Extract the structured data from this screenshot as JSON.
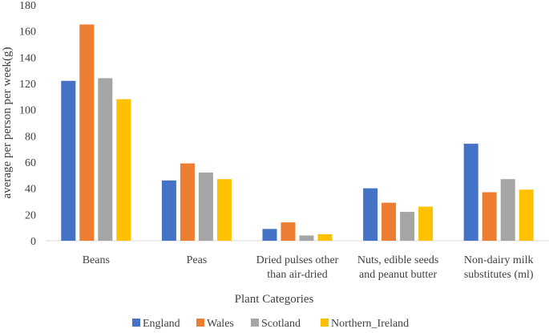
{
  "chart_data": {
    "type": "bar",
    "title": "",
    "xlabel": "Plant Categories",
    "ylabel": "average per person per week(g)",
    "ylim": [
      0,
      180
    ],
    "yticks": [
      0,
      20,
      40,
      60,
      80,
      100,
      120,
      140,
      160,
      180
    ],
    "grid": false,
    "legend_position": "bottom",
    "categories": [
      [
        "Beans"
      ],
      [
        "Peas"
      ],
      [
        "Dried pulses other",
        "than air-dried"
      ],
      [
        "Nuts, edible seeds",
        "and peanut butter"
      ],
      [
        "Non-dairy milk",
        "substitutes (ml)"
      ]
    ],
    "series": [
      {
        "name": "England",
        "color": "#4472C4",
        "values": [
          122,
          46,
          9,
          40,
          74
        ]
      },
      {
        "name": "Wales",
        "color": "#ED7D31",
        "values": [
          165,
          59,
          14,
          29,
          37
        ]
      },
      {
        "name": "Scotland",
        "color": "#A5A5A5",
        "values": [
          124,
          52,
          4,
          22,
          47
        ]
      },
      {
        "name": "Northern_Ireland",
        "color": "#FFC000",
        "values": [
          108,
          47,
          5,
          26,
          39
        ]
      }
    ]
  }
}
